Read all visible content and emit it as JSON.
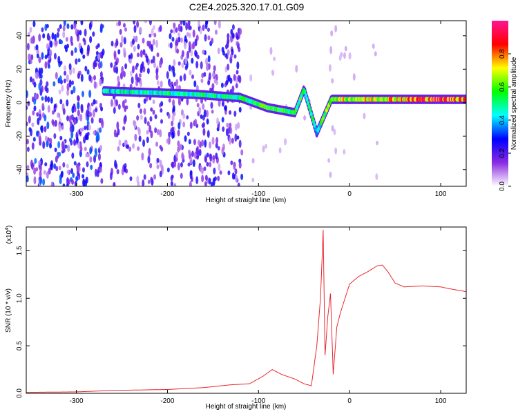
{
  "figure": {
    "title": "C2E4.2025.320.17.01.G09"
  },
  "chart_data": [
    {
      "type": "heatmap",
      "xlabel": "Height of straight line (km)",
      "ylabel": "Frequency (Hz)",
      "xlim": [
        -355,
        128
      ],
      "ylim": [
        -50,
        49
      ],
      "xticks": [
        -300,
        -200,
        -100,
        0,
        100
      ],
      "yticks": [
        -40,
        -20,
        0,
        20,
        40
      ],
      "colorbar": {
        "label": "Normalized spectral amplitude",
        "range": [
          0,
          1
        ],
        "ticks": [
          "0.0",
          "0.2",
          "0.4",
          "0.6",
          "0.8"
        ],
        "colormap": [
          "#ffffff",
          "#8a2be2",
          "#0000ff",
          "#00ffff",
          "#00ff00",
          "#ffff00",
          "#ff0000",
          "#ff1493"
        ]
      },
      "ridge": [
        {
          "x": -270,
          "f": 7,
          "amp": 0.45
        },
        {
          "x": -220,
          "f": 6,
          "amp": 0.5
        },
        {
          "x": -170,
          "f": 5,
          "amp": 0.5
        },
        {
          "x": -120,
          "f": 3,
          "amp": 0.5
        },
        {
          "x": -90,
          "f": -3,
          "amp": 0.6
        },
        {
          "x": -60,
          "f": -6,
          "amp": 0.55
        },
        {
          "x": -50,
          "f": 8,
          "amp": 0.55
        },
        {
          "x": -36,
          "f": -18,
          "amp": 0.45
        },
        {
          "x": -20,
          "f": 2,
          "amp": 0.7
        },
        {
          "x": 0,
          "f": 2,
          "amp": 0.7
        },
        {
          "x": 60,
          "f": 2,
          "amp": 0.8
        },
        {
          "x": 90,
          "f": 2,
          "amp": 0.9
        },
        {
          "x": 128,
          "f": 2,
          "amp": 0.85
        }
      ]
    },
    {
      "type": "line",
      "xlabel": "Height of straight line (km)",
      "ylabel": "SNR (10 * v/v)",
      "y_multiplier": "(x10",
      "y_multiplier_exp": "4",
      "y_multiplier_close": ")",
      "xlim": [
        -355,
        128
      ],
      "ylim": [
        0,
        1.75
      ],
      "xticks": [
        -300,
        -200,
        -100,
        0,
        100
      ],
      "yticks": [
        "0.0",
        "0.5",
        "1.0",
        "1.5"
      ],
      "color": "#e8262b",
      "series": [
        {
          "x": [
            -355,
            -300,
            -260,
            -200,
            -160,
            -130,
            -110,
            -95,
            -85,
            -75,
            -60,
            -50,
            -42,
            -36,
            -32,
            -29,
            -27,
            -24,
            -21,
            -18,
            -14,
            -10,
            -5,
            0,
            10,
            20,
            30,
            36,
            42,
            50,
            60,
            80,
            100,
            110,
            128
          ],
          "y": [
            0.01,
            0.015,
            0.03,
            0.04,
            0.06,
            0.09,
            0.1,
            0.18,
            0.25,
            0.2,
            0.15,
            0.1,
            0.08,
            0.5,
            1.0,
            1.72,
            0.4,
            0.8,
            1.05,
            0.2,
            0.7,
            0.85,
            1.0,
            1.15,
            1.23,
            1.28,
            1.34,
            1.35,
            1.28,
            1.16,
            1.12,
            1.13,
            1.12,
            1.1,
            1.07
          ]
        }
      ]
    }
  ]
}
